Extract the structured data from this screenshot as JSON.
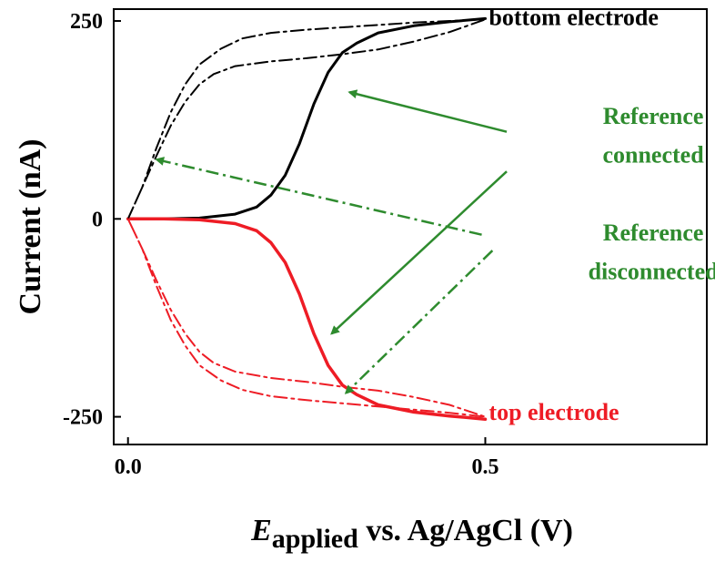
{
  "chart_data": {
    "type": "line",
    "xlabel": {
      "symbol": "E",
      "subscript": "applied",
      "rest": " vs. Ag/AgCl (V)"
    },
    "ylabel": "Current (nA)",
    "xlim": [
      -0.02,
      0.81
    ],
    "ylim": [
      -285,
      265
    ],
    "x_ticks": [
      0.0,
      0.5
    ],
    "x_tick_labels": [
      "0.0",
      "0.5"
    ],
    "y_ticks": [
      250,
      0,
      -250
    ],
    "y_tick_labels": [
      "250",
      "0",
      "-250"
    ],
    "grid": false,
    "colors": {
      "black": "#000000",
      "red": "#ee1c25",
      "green": "#2e8b2e"
    },
    "series": [
      {
        "color": "#000000",
        "style": "solid",
        "width": 3,
        "x": [
          0.0,
          0.05,
          0.1,
          0.15,
          0.18,
          0.2,
          0.22,
          0.24,
          0.26,
          0.28,
          0.3,
          0.32,
          0.35,
          0.4,
          0.45,
          0.5
        ],
        "y": [
          0,
          0,
          1,
          6,
          15,
          30,
          55,
          95,
          145,
          185,
          210,
          222,
          235,
          244,
          249,
          253
        ]
      },
      {
        "color": "#ee1c25",
        "style": "solid",
        "width": 3.5,
        "x": [
          0.0,
          0.05,
          0.1,
          0.15,
          0.18,
          0.2,
          0.22,
          0.24,
          0.26,
          0.28,
          0.3,
          0.32,
          0.35,
          0.4,
          0.45,
          0.5
        ],
        "y": [
          0,
          0,
          -1,
          -6,
          -15,
          -30,
          -55,
          -95,
          -145,
          -185,
          -210,
          -222,
          -235,
          -244,
          -249,
          -253
        ]
      },
      {
        "color": "#000000",
        "style": "dashdot",
        "width": 2,
        "x": [
          0.0,
          0.02,
          0.04,
          0.06,
          0.08,
          0.1,
          0.13,
          0.16,
          0.2,
          0.25,
          0.3,
          0.35,
          0.4,
          0.45,
          0.5,
          0.45,
          0.4,
          0.35,
          0.3,
          0.25,
          0.2,
          0.15,
          0.12,
          0.1,
          0.08,
          0.06,
          0.04,
          0.02,
          0.0
        ],
        "y": [
          0,
          40,
          90,
          135,
          170,
          195,
          215,
          228,
          235,
          239,
          242,
          245,
          248,
          250,
          252,
          236,
          224,
          214,
          208,
          203,
          199,
          193,
          183,
          170,
          148,
          118,
          80,
          40,
          0
        ]
      },
      {
        "color": "#ee1c25",
        "style": "dashdot",
        "width": 2,
        "x": [
          0.0,
          0.02,
          0.04,
          0.06,
          0.08,
          0.1,
          0.13,
          0.16,
          0.2,
          0.25,
          0.3,
          0.35,
          0.4,
          0.45,
          0.5,
          0.45,
          0.4,
          0.35,
          0.3,
          0.25,
          0.2,
          0.15,
          0.12,
          0.1,
          0.08,
          0.06,
          0.04,
          0.02,
          0.0
        ],
        "y": [
          0,
          -38,
          -85,
          -128,
          -160,
          -185,
          -204,
          -216,
          -224,
          -229,
          -233,
          -237,
          -241,
          -245,
          -250,
          -235,
          -225,
          -217,
          -212,
          -206,
          -201,
          -193,
          -182,
          -168,
          -145,
          -115,
          -78,
          -38,
          0
        ]
      }
    ],
    "labels": [
      {
        "text": "bottom electrode",
        "color": "#000000",
        "x": 0.505,
        "y": 245,
        "anchor": "start"
      },
      {
        "text": "top electrode",
        "color": "#ee1c25",
        "x": 0.505,
        "y": -254,
        "anchor": "start"
      },
      {
        "text": "Reference",
        "color": "#2e8b2e",
        "x": 0.735,
        "y": 120,
        "anchor": "middle"
      },
      {
        "text": "connected",
        "color": "#2e8b2e",
        "x": 0.735,
        "y": 71,
        "anchor": "middle"
      },
      {
        "text": "Reference",
        "color": "#2e8b2e",
        "x": 0.735,
        "y": -27,
        "anchor": "middle"
      },
      {
        "text": "disconnected",
        "color": "#2e8b2e",
        "x": 0.735,
        "y": -76,
        "anchor": "middle"
      }
    ],
    "arrows": [
      {
        "color": "#2e8b2e",
        "style": "solid",
        "from": [
          0.53,
          110
        ],
        "to": [
          0.31,
          160
        ]
      },
      {
        "color": "#2e8b2e",
        "style": "solid",
        "from": [
          0.53,
          60
        ],
        "to": [
          0.285,
          -145
        ]
      },
      {
        "color": "#2e8b2e",
        "style": "dashdot",
        "from": [
          0.495,
          -20
        ],
        "to": [
          0.04,
          75
        ]
      },
      {
        "color": "#2e8b2e",
        "style": "dashdot",
        "from": [
          0.51,
          -40
        ],
        "to": [
          0.305,
          -220
        ]
      }
    ]
  }
}
